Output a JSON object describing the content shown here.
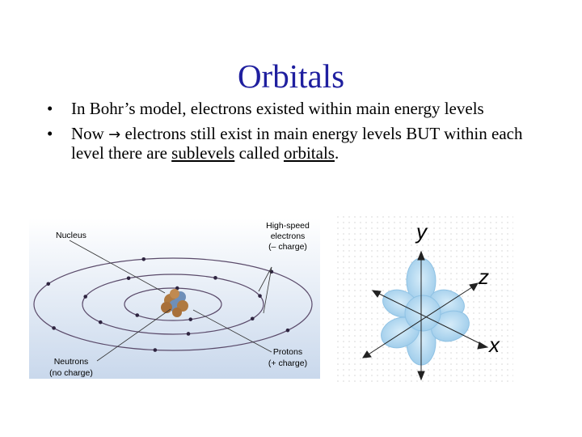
{
  "slide": {
    "title": "Orbitals",
    "bullets": [
      {
        "text": "In Bohr’s model, electrons existed within main energy levels"
      },
      {
        "pre": "Now ",
        "arrow": "→",
        "mid": " electrons still exist in main energy levels BUT within each level there are ",
        "u1": "sublevels",
        "mid2": " called ",
        "u2": "orbitals",
        "post": "."
      }
    ],
    "bullet_glyph": "•"
  },
  "atom_image": {
    "labels": {
      "nucleus": "Nucleus",
      "electrons": [
        "High-speed",
        "electrons",
        "(– charge)"
      ],
      "neutrons": [
        "Neutrons",
        "(no charge)"
      ],
      "protons": [
        "Protons",
        "(+ charge)"
      ]
    }
  },
  "orbital_image": {
    "axes": {
      "y": "y",
      "z": "z",
      "x": "x"
    },
    "lobe_color": "#a9d4ee"
  }
}
